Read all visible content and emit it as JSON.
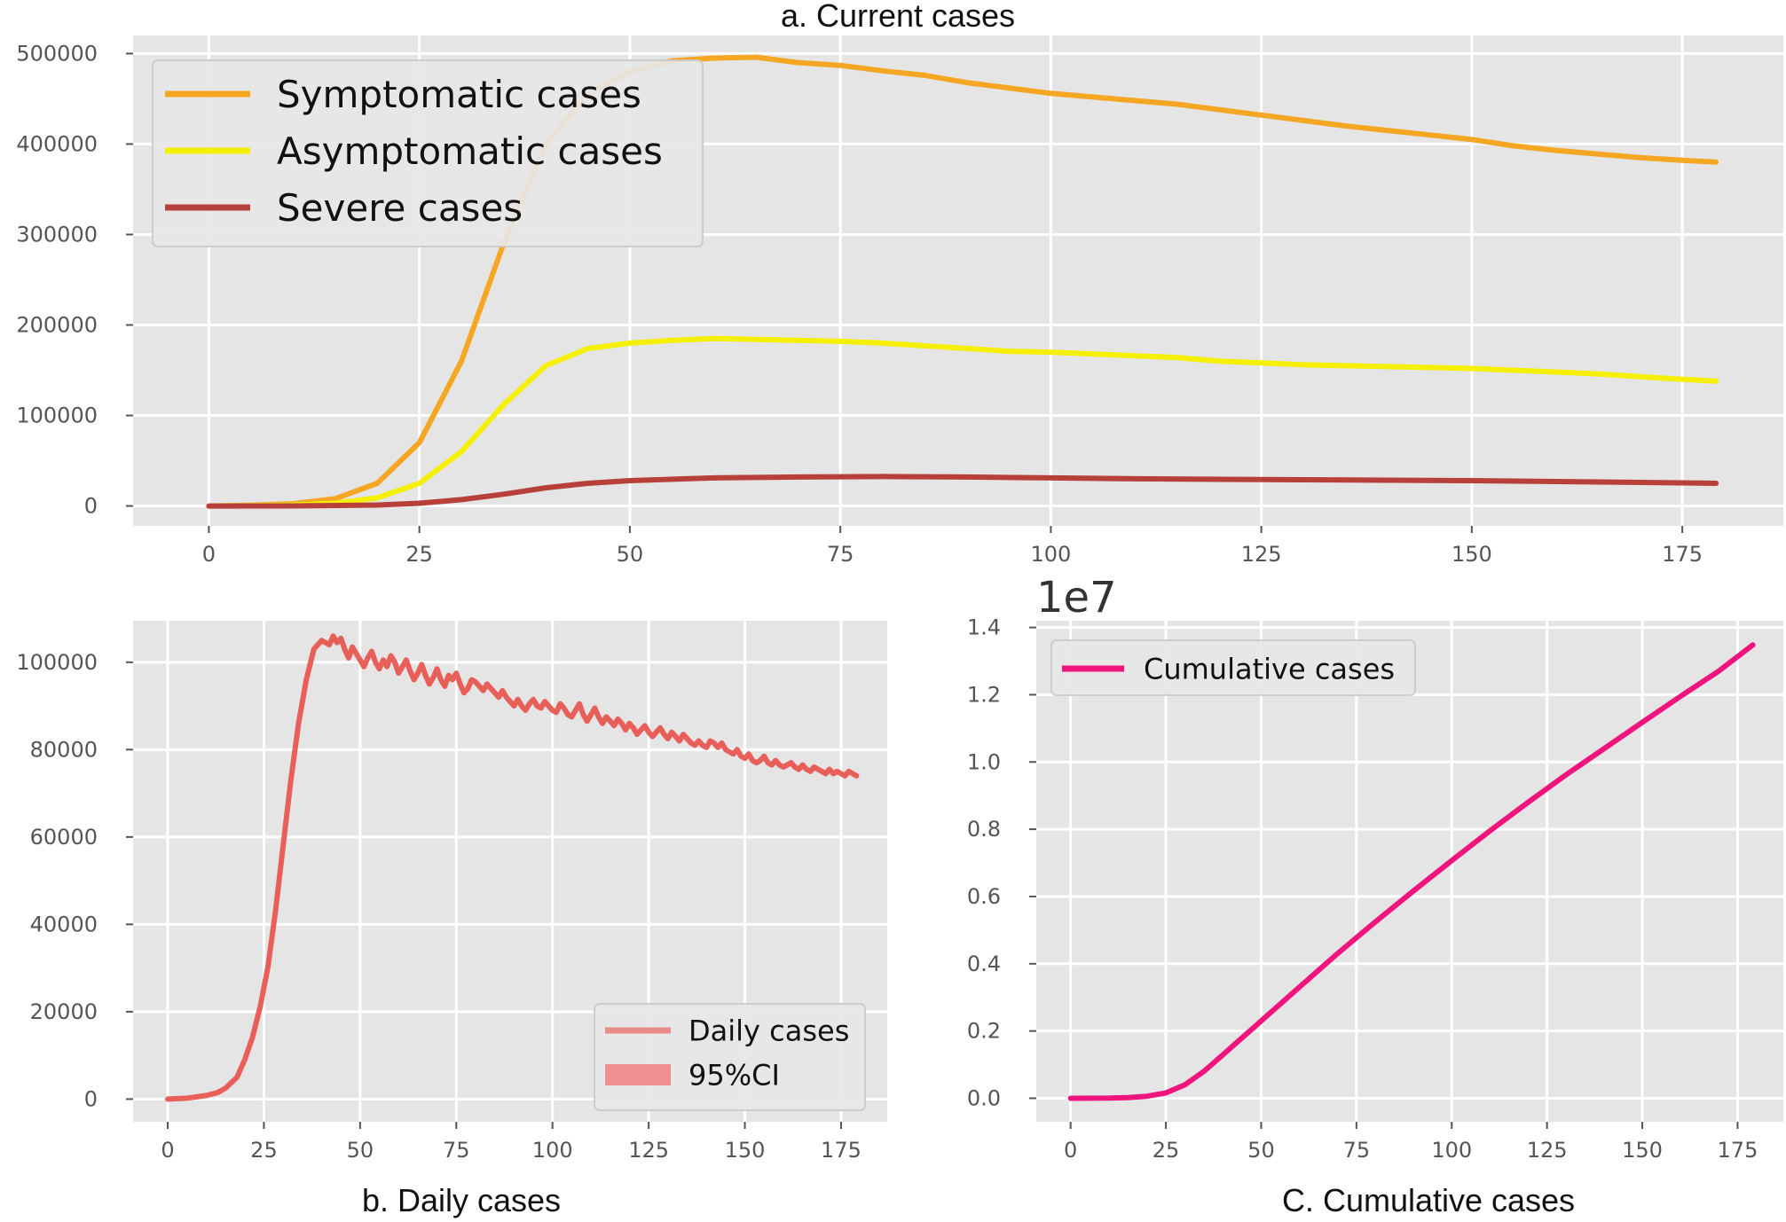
{
  "chart_data": [
    {
      "id": "current",
      "type": "line",
      "title": "a. Current cases",
      "xlabel": "",
      "ylabel": "",
      "xlim": [
        -9,
        187
      ],
      "ylim": [
        -22000,
        520000
      ],
      "xticks": [
        0,
        25,
        50,
        75,
        100,
        125,
        150,
        175
      ],
      "yticks": [
        0,
        100000,
        200000,
        300000,
        400000,
        500000
      ],
      "grid": true,
      "legend_position": "top-left",
      "series": [
        {
          "name": "Symptomatic cases",
          "color": "#f5a623",
          "x": [
            0,
            5,
            10,
            15,
            20,
            25,
            30,
            35,
            40,
            45,
            50,
            55,
            60,
            65,
            70,
            75,
            80,
            85,
            90,
            95,
            100,
            105,
            110,
            115,
            120,
            125,
            130,
            135,
            140,
            145,
            150,
            155,
            160,
            165,
            170,
            175,
            179
          ],
          "y": [
            0,
            800,
            2500,
            8000,
            25000,
            70000,
            160000,
            290000,
            400000,
            455000,
            480000,
            492000,
            495000,
            496000,
            490000,
            487000,
            481000,
            476000,
            468000,
            462000,
            456000,
            452000,
            448000,
            444000,
            438000,
            432000,
            426000,
            420000,
            415000,
            410000,
            405000,
            398000,
            393000,
            389000,
            385000,
            382000,
            380000
          ]
        },
        {
          "name": "Asymptomatic cases",
          "color": "#f4f000",
          "x": [
            0,
            5,
            10,
            15,
            20,
            25,
            30,
            35,
            40,
            45,
            50,
            55,
            60,
            65,
            70,
            75,
            80,
            85,
            90,
            95,
            100,
            105,
            110,
            115,
            120,
            125,
            130,
            135,
            140,
            145,
            150,
            155,
            160,
            165,
            170,
            175,
            179
          ],
          "y": [
            0,
            300,
            1000,
            3000,
            9000,
            25000,
            60000,
            112000,
            155000,
            174000,
            180000,
            183000,
            185000,
            184000,
            183000,
            182000,
            180000,
            177000,
            174000,
            171000,
            170000,
            168000,
            166000,
            164000,
            160000,
            158000,
            156000,
            155000,
            154000,
            153000,
            152000,
            150000,
            148000,
            146000,
            143000,
            140000,
            138000
          ]
        },
        {
          "name": "Severe cases",
          "color": "#b8403a",
          "x": [
            0,
            10,
            20,
            25,
            30,
            35,
            40,
            45,
            50,
            60,
            70,
            80,
            90,
            100,
            110,
            120,
            130,
            140,
            150,
            160,
            170,
            179
          ],
          "y": [
            0,
            100,
            1000,
            3000,
            7000,
            13000,
            20000,
            25000,
            28000,
            31000,
            32000,
            32500,
            32000,
            31000,
            30000,
            29500,
            29000,
            28500,
            28000,
            27000,
            26000,
            25000
          ]
        }
      ]
    },
    {
      "id": "daily",
      "type": "line",
      "title": "b. Daily cases",
      "xlabel": "",
      "ylabel": "",
      "xlim": [
        -9,
        187
      ],
      "ylim": [
        -5200,
        109500
      ],
      "xticks": [
        0,
        25,
        50,
        75,
        100,
        125,
        150,
        175
      ],
      "yticks": [
        0,
        20000,
        40000,
        60000,
        80000,
        100000
      ],
      "grid": true,
      "legend_position": "bottom-right",
      "series": [
        {
          "name": "Daily cases",
          "color": "#e8504a",
          "x": [
            0,
            5,
            10,
            13,
            15,
            18,
            20,
            22,
            24,
            26,
            28,
            30,
            32,
            34,
            36,
            38,
            40,
            42,
            43,
            44,
            45,
            46,
            47,
            48,
            49,
            50,
            51,
            52,
            53,
            54,
            55,
            56,
            57,
            58,
            59,
            60,
            61,
            62,
            63,
            64,
            65,
            66,
            67,
            68,
            69,
            70,
            71,
            72,
            73,
            74,
            75,
            76,
            77,
            78,
            79,
            80,
            81,
            82,
            83,
            84,
            85,
            86,
            87,
            88,
            89,
            90,
            91,
            92,
            93,
            94,
            95,
            96,
            97,
            98,
            99,
            100,
            101,
            102,
            103,
            104,
            105,
            106,
            107,
            108,
            109,
            110,
            111,
            112,
            113,
            114,
            115,
            116,
            117,
            118,
            119,
            120,
            121,
            122,
            123,
            124,
            125,
            126,
            127,
            128,
            129,
            130,
            131,
            132,
            133,
            134,
            135,
            136,
            137,
            138,
            139,
            140,
            141,
            142,
            143,
            144,
            145,
            146,
            147,
            148,
            149,
            150,
            151,
            152,
            153,
            154,
            155,
            156,
            157,
            158,
            159,
            160,
            161,
            162,
            163,
            164,
            165,
            166,
            167,
            168,
            169,
            170,
            171,
            172,
            173,
            174,
            175,
            176,
            177,
            178,
            179
          ],
          "y": [
            0,
            200,
            800,
            1500,
            2500,
            5000,
            9000,
            14000,
            21000,
            30000,
            43000,
            58000,
            73000,
            86000,
            96000,
            103000,
            105000,
            104000,
            106000,
            104500,
            105500,
            103000,
            101000,
            103500,
            102000,
            100500,
            99000,
            101000,
            102500,
            100000,
            98500,
            100500,
            99000,
            101500,
            100000,
            97500,
            99000,
            100500,
            98000,
            96000,
            97500,
            99500,
            97000,
            95000,
            96500,
            98500,
            96000,
            94500,
            97000,
            96000,
            97500,
            95000,
            93000,
            94000,
            96000,
            95500,
            94500,
            93500,
            95000,
            94000,
            93000,
            92000,
            93500,
            92000,
            91000,
            90000,
            91500,
            90000,
            89000,
            90500,
            91500,
            90000,
            89500,
            91000,
            90000,
            89000,
            88500,
            90500,
            89500,
            88000,
            87500,
            89000,
            90500,
            88000,
            86500,
            88000,
            89500,
            87500,
            86000,
            87500,
            86500,
            85500,
            87000,
            86000,
            84500,
            86000,
            85000,
            83500,
            84500,
            85500,
            84000,
            83000,
            84000,
            85000,
            83500,
            82500,
            84000,
            83000,
            82000,
            83500,
            82500,
            81500,
            81000,
            82000,
            81000,
            80500,
            82000,
            81500,
            80500,
            81500,
            80000,
            79500,
            79000,
            80000,
            78500,
            78000,
            79000,
            77500,
            77000,
            77500,
            78500,
            77000,
            76500,
            77500,
            76500,
            76000,
            76500,
            77000,
            76000,
            75500,
            76500,
            75500,
            75000,
            76000,
            75500,
            75000,
            74500,
            75500,
            74500,
            75000,
            74500,
            74000,
            75000,
            74500,
            74000
          ]
        },
        {
          "name": "95%CI",
          "color": "#f08080"
        }
      ]
    },
    {
      "id": "cumulative",
      "type": "line",
      "title": "C. Cumulative cases",
      "xlabel": "",
      "ylabel": "",
      "exponent_label": "1e7",
      "xlim": [
        -9,
        187
      ],
      "ylim": [
        -0.07,
        1.42
      ],
      "xticks": [
        0,
        25,
        50,
        75,
        100,
        125,
        150,
        175
      ],
      "yticks": [
        0.0,
        0.2,
        0.4,
        0.6,
        0.8,
        1.0,
        1.2,
        1.4
      ],
      "ytick_labels": [
        "0.0",
        "0.2",
        "0.4",
        "0.6",
        "0.8",
        "1.0",
        "1.2",
        "1.4"
      ],
      "grid": true,
      "legend_position": "top-left",
      "series": [
        {
          "name": "Cumulative cases",
          "color": "#f0157d",
          "x": [
            0,
            10,
            15,
            20,
            25,
            30,
            35,
            40,
            45,
            50,
            60,
            70,
            80,
            90,
            100,
            110,
            120,
            130,
            140,
            150,
            160,
            170,
            179
          ],
          "y": [
            0,
            0.0005,
            0.002,
            0.006,
            0.016,
            0.04,
            0.08,
            0.13,
            0.18,
            0.23,
            0.33,
            0.43,
            0.525,
            0.617,
            0.707,
            0.795,
            0.88,
            0.962,
            1.04,
            1.118,
            1.195,
            1.27,
            1.348
          ]
        }
      ]
    }
  ]
}
